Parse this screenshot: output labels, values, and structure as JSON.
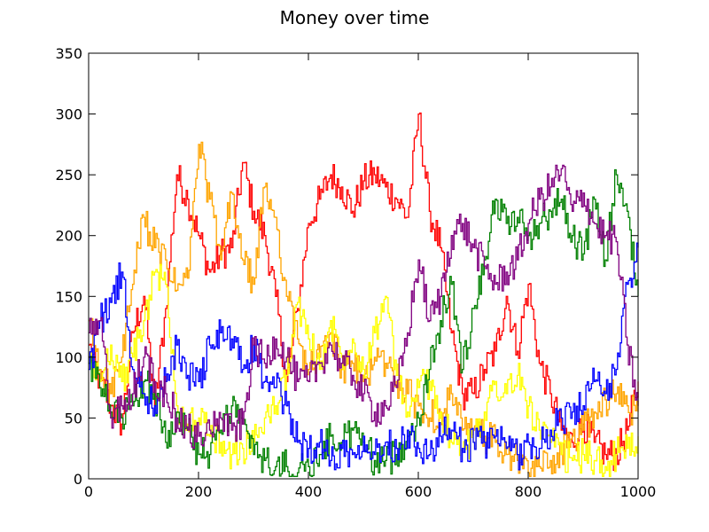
{
  "chart_data": {
    "type": "line",
    "title": "Money over time",
    "xlabel": "",
    "ylabel": "",
    "xlim": [
      0,
      1000
    ],
    "ylim": [
      0,
      350
    ],
    "xticks": [
      0,
      200,
      400,
      600,
      800,
      1000
    ],
    "yticks": [
      0,
      50,
      100,
      150,
      200,
      250,
      300,
      350
    ],
    "grid": false,
    "legend": "none",
    "series": [
      {
        "color": "#ff0000",
        "x": [
          0,
          20,
          40,
          60,
          80,
          100,
          120,
          140,
          160,
          180,
          200,
          220,
          240,
          260,
          280,
          300,
          320,
          340,
          360,
          380,
          400,
          420,
          440,
          460,
          480,
          500,
          520,
          540,
          560,
          580,
          600,
          620,
          640,
          660,
          680,
          700,
          720,
          740,
          760,
          780,
          800,
          820,
          840,
          860,
          880,
          900,
          920,
          940,
          960,
          980,
          1000
        ],
        "y": [
          110,
          80,
          60,
          45,
          120,
          150,
          60,
          140,
          250,
          230,
          200,
          170,
          185,
          190,
          260,
          220,
          200,
          150,
          80,
          140,
          210,
          230,
          250,
          240,
          220,
          245,
          250,
          240,
          230,
          215,
          300,
          220,
          190,
          120,
          70,
          70,
          90,
          105,
          150,
          105,
          160,
          95,
          70,
          40,
          30,
          45,
          30,
          20,
          20,
          40,
          80
        ]
      },
      {
        "color": "#ffa500",
        "x": [
          0,
          20,
          40,
          60,
          80,
          100,
          120,
          140,
          160,
          180,
          200,
          220,
          240,
          260,
          280,
          300,
          320,
          340,
          360,
          380,
          400,
          420,
          440,
          460,
          480,
          500,
          520,
          540,
          560,
          580,
          600,
          620,
          640,
          660,
          680,
          700,
          720,
          740,
          760,
          780,
          800,
          820,
          840,
          860,
          880,
          900,
          920,
          940,
          960,
          980,
          1000
        ],
        "y": [
          130,
          90,
          70,
          100,
          160,
          215,
          190,
          180,
          155,
          165,
          275,
          230,
          180,
          235,
          180,
          160,
          240,
          215,
          150,
          115,
          90,
          100,
          120,
          90,
          95,
          80,
          100,
          95,
          80,
          70,
          60,
          50,
          55,
          70,
          40,
          40,
          35,
          30,
          20,
          15,
          5,
          10,
          15,
          20,
          35,
          40,
          55,
          65,
          70,
          60,
          55
        ]
      },
      {
        "color": "#ffff00",
        "x": [
          0,
          20,
          40,
          60,
          80,
          100,
          120,
          140,
          160,
          180,
          200,
          220,
          240,
          260,
          280,
          300,
          320,
          340,
          360,
          380,
          400,
          420,
          440,
          460,
          480,
          500,
          520,
          540,
          560,
          580,
          600,
          620,
          640,
          660,
          680,
          700,
          720,
          740,
          760,
          780,
          800,
          820,
          840,
          860,
          880,
          900,
          920,
          940,
          960,
          980,
          1000
        ],
        "y": [
          100,
          80,
          110,
          80,
          100,
          130,
          170,
          160,
          60,
          45,
          50,
          35,
          30,
          20,
          25,
          30,
          50,
          60,
          85,
          145,
          115,
          90,
          130,
          100,
          115,
          90,
          120,
          150,
          85,
          55,
          75,
          80,
          55,
          30,
          25,
          30,
          55,
          80,
          70,
          85,
          60,
          40,
          30,
          20,
          15,
          20,
          15,
          10,
          20,
          25,
          35
        ]
      },
      {
        "color": "#008000",
        "x": [
          0,
          20,
          40,
          60,
          80,
          100,
          120,
          140,
          160,
          180,
          200,
          220,
          240,
          260,
          280,
          300,
          320,
          340,
          360,
          380,
          400,
          420,
          440,
          460,
          480,
          500,
          520,
          540,
          560,
          580,
          600,
          620,
          640,
          660,
          680,
          700,
          720,
          740,
          760,
          780,
          800,
          820,
          840,
          860,
          880,
          900,
          920,
          940,
          960,
          980,
          1000
        ],
        "y": [
          95,
          75,
          55,
          50,
          60,
          80,
          70,
          30,
          55,
          40,
          20,
          20,
          40,
          60,
          45,
          20,
          15,
          10,
          10,
          5,
          10,
          20,
          35,
          30,
          40,
          30,
          15,
          15,
          20,
          35,
          50,
          90,
          130,
          160,
          90,
          140,
          180,
          230,
          210,
          215,
          200,
          210,
          220,
          230,
          200,
          185,
          230,
          180,
          250,
          220,
          150
        ]
      },
      {
        "color": "#0000ff",
        "x": [
          0,
          20,
          40,
          60,
          80,
          100,
          120,
          140,
          160,
          180,
          200,
          220,
          240,
          260,
          280,
          300,
          320,
          340,
          360,
          380,
          400,
          420,
          440,
          460,
          480,
          500,
          520,
          540,
          560,
          580,
          600,
          620,
          640,
          660,
          680,
          700,
          720,
          740,
          760,
          780,
          800,
          820,
          840,
          860,
          880,
          900,
          920,
          940,
          960,
          980,
          1000
        ],
        "y": [
          90,
          130,
          145,
          170,
          90,
          70,
          60,
          80,
          110,
          85,
          80,
          110,
          120,
          115,
          90,
          110,
          80,
          75,
          60,
          30,
          25,
          30,
          15,
          25,
          20,
          35,
          20,
          30,
          25,
          40,
          25,
          20,
          35,
          40,
          25,
          30,
          30,
          35,
          25,
          20,
          30,
          25,
          40,
          50,
          55,
          60,
          80,
          70,
          90,
          160,
          190
        ]
      },
      {
        "color": "#800080",
        "x": [
          0,
          20,
          40,
          60,
          80,
          100,
          120,
          140,
          160,
          180,
          200,
          220,
          240,
          260,
          280,
          300,
          320,
          340,
          360,
          380,
          400,
          420,
          440,
          460,
          480,
          500,
          520,
          540,
          560,
          580,
          600,
          620,
          640,
          660,
          680,
          700,
          720,
          740,
          760,
          780,
          800,
          820,
          840,
          860,
          880,
          900,
          920,
          940,
          960,
          980,
          1000
        ],
        "y": [
          120,
          130,
          50,
          60,
          70,
          100,
          80,
          70,
          50,
          40,
          35,
          40,
          50,
          40,
          45,
          110,
          95,
          115,
          100,
          80,
          80,
          95,
          110,
          95,
          85,
          70,
          55,
          60,
          75,
          120,
          180,
          130,
          150,
          200,
          210,
          190,
          175,
          160,
          170,
          180,
          210,
          230,
          240,
          255,
          220,
          235,
          210,
          200,
          195,
          110,
          60
        ]
      }
    ]
  }
}
